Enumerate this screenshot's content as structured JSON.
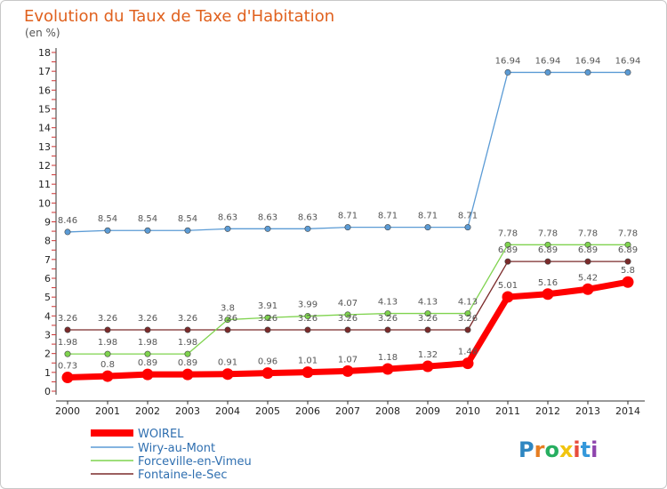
{
  "title": "Evolution du Taux de Taxe d'Habitation",
  "subtitle": "(en %)",
  "logo_text": "Proxiti",
  "chart_data": {
    "type": "line",
    "x": [
      2000,
      2001,
      2002,
      2003,
      2004,
      2005,
      2006,
      2007,
      2008,
      2009,
      2010,
      2011,
      2012,
      2013,
      2014
    ],
    "ylim": [
      0,
      18
    ],
    "yticks": [
      0,
      1,
      2,
      3,
      4,
      5,
      6,
      7,
      8,
      9,
      10,
      11,
      12,
      13,
      14,
      15,
      16,
      17,
      18
    ],
    "grid": false,
    "legend_position": "bottom-left",
    "series": [
      {
        "name": "WOIREL",
        "color": "#ff0000",
        "values": [
          0.73,
          0.8,
          0.89,
          0.89,
          0.91,
          0.96,
          1.01,
          1.07,
          1.18,
          1.32,
          1.48,
          5.01,
          5.16,
          5.42,
          5.8
        ],
        "labels": [
          "0.73",
          "0.8",
          "0.89",
          "0.89",
          "0.91",
          "0.96",
          "1.01",
          "1.07",
          "1.18",
          "1.32",
          "1.48",
          "5.01",
          "5.16",
          "5.42",
          "5.8"
        ]
      },
      {
        "name": "Wiry-au-Mont",
        "color": "#5b9bd5",
        "values": [
          8.46,
          8.54,
          8.54,
          8.54,
          8.63,
          8.63,
          8.63,
          8.71,
          8.71,
          8.71,
          8.71,
          16.94,
          16.94,
          16.94,
          16.94
        ],
        "labels": [
          "8.46",
          "8.54",
          "8.54",
          "8.54",
          "8.63",
          "8.63",
          "8.63",
          "8.71",
          "8.71",
          "8.71",
          "8.71",
          "16.94",
          "16.94",
          "16.94",
          "16.94"
        ]
      },
      {
        "name": "Forceville-en-Vimeu",
        "color": "#7fd34e",
        "values": [
          1.98,
          1.98,
          1.98,
          1.98,
          3.8,
          3.91,
          3.99,
          4.07,
          4.13,
          4.13,
          4.13,
          7.78,
          7.78,
          7.78,
          7.78
        ],
        "labels": [
          "1.98",
          "1.98",
          "1.98",
          "1.98",
          "3.8",
          "3.91",
          "3.99",
          "4.07",
          "4.13",
          "4.13",
          "4.13",
          "7.78",
          "7.78",
          "7.78",
          "7.78"
        ]
      },
      {
        "name": "Fontaine-le-Sec",
        "color": "#7b2a2a",
        "values": [
          3.26,
          3.26,
          3.26,
          3.26,
          3.26,
          3.26,
          3.26,
          3.26,
          3.26,
          3.26,
          3.26,
          6.89,
          6.89,
          6.89,
          6.89
        ],
        "labels": [
          "3.26",
          "3.26",
          "3.26",
          "3.26",
          "3.26",
          "3.26",
          "3.26",
          "3.26",
          "3.26",
          "3.26",
          "3.26",
          "6.89",
          "6.89",
          "6.89",
          "6.89"
        ]
      }
    ]
  }
}
